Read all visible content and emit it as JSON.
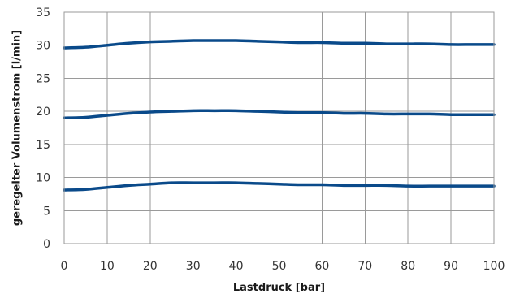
{
  "chart_data": {
    "type": "line",
    "title": "",
    "xlabel": "Lastdruck [bar]",
    "ylabel": "geregelter Volumenstrom [l/min]",
    "xlim": [
      0,
      100
    ],
    "ylim": [
      0,
      35
    ],
    "xticks": [
      0,
      10,
      20,
      30,
      40,
      50,
      60,
      70,
      80,
      90,
      100
    ],
    "yticks": [
      0,
      5,
      10,
      15,
      20,
      25,
      30,
      35
    ],
    "grid": true,
    "line_color": "#0a4a8a",
    "series": [
      {
        "x": [
          0,
          5,
          10,
          15,
          20,
          25,
          30,
          35,
          40,
          45,
          50,
          55,
          60,
          65,
          70,
          75,
          80,
          85,
          90,
          95,
          100
        ],
        "values": [
          29.6,
          29.7,
          30.0,
          30.3,
          30.5,
          30.6,
          30.7,
          30.7,
          30.7,
          30.6,
          30.5,
          30.4,
          30.4,
          30.3,
          30.3,
          30.2,
          30.2,
          30.2,
          30.1,
          30.1,
          30.1
        ]
      },
      {
        "x": [
          0,
          5,
          10,
          15,
          20,
          25,
          30,
          35,
          40,
          45,
          50,
          55,
          60,
          65,
          70,
          75,
          80,
          85,
          90,
          95,
          100
        ],
        "values": [
          19.0,
          19.1,
          19.4,
          19.7,
          19.9,
          20.0,
          20.1,
          20.1,
          20.1,
          20.0,
          19.9,
          19.8,
          19.8,
          19.7,
          19.7,
          19.6,
          19.6,
          19.6,
          19.5,
          19.5,
          19.5
        ]
      },
      {
        "x": [
          0,
          5,
          10,
          15,
          20,
          25,
          30,
          35,
          40,
          45,
          50,
          55,
          60,
          65,
          70,
          75,
          80,
          85,
          90,
          95,
          100
        ],
        "values": [
          8.1,
          8.2,
          8.5,
          8.8,
          9.0,
          9.2,
          9.2,
          9.2,
          9.2,
          9.1,
          9.0,
          8.9,
          8.9,
          8.8,
          8.8,
          8.8,
          8.7,
          8.7,
          8.7,
          8.7,
          8.7
        ]
      }
    ]
  }
}
